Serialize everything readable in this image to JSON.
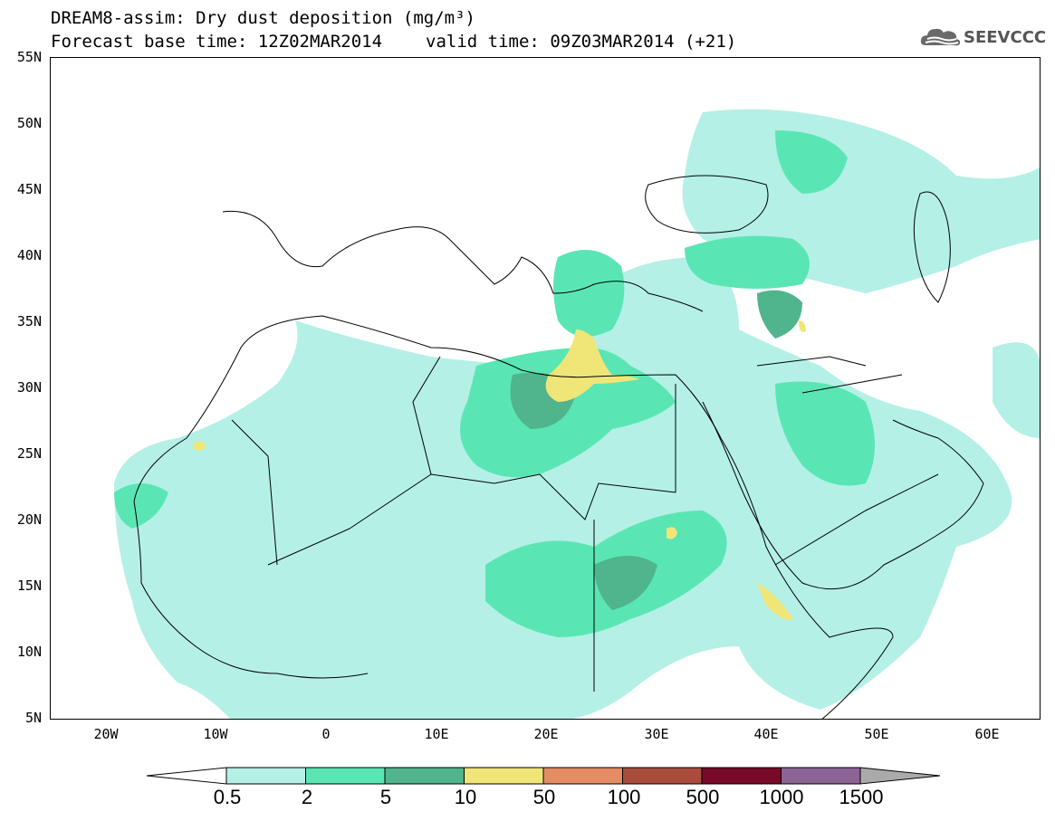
{
  "header": {
    "title_line1": "DREAM8-assim: Dry dust deposition (mg/m³)",
    "base_time": "Forecast base time: 12Z02MAR2014",
    "valid_time": "valid time: 09Z03MAR2014 (+21)"
  },
  "logo": {
    "text": "SEEVCCC",
    "icon": "cloud-logo-icon"
  },
  "map": {
    "projection": "lat-lon",
    "lon_range": [
      -25,
      65
    ],
    "lat_range": [
      5,
      55
    ],
    "lat_labels": [
      "55N",
      "50N",
      "45N",
      "40N",
      "35N",
      "30N",
      "25N",
      "20N",
      "15N",
      "10N",
      "5N"
    ],
    "lon_labels": [
      "20W",
      "10W",
      "0",
      "10E",
      "20E",
      "30E",
      "40E",
      "50E",
      "60E"
    ],
    "features": [
      "coastlines",
      "country-borders"
    ]
  },
  "legend": {
    "levels": [
      "0.5",
      "2",
      "5",
      "10",
      "50",
      "100",
      "500",
      "1000",
      "1500"
    ],
    "colors": [
      "#b4f0e6",
      "#5ae6b4",
      "#50b48c",
      "#f0e678",
      "#e68c64",
      "#aa4b3c",
      "#780a28",
      "#8c6496",
      "#aaaaaa"
    ],
    "under_color": "#ffffff",
    "over_color": "#aaaaaa"
  }
}
